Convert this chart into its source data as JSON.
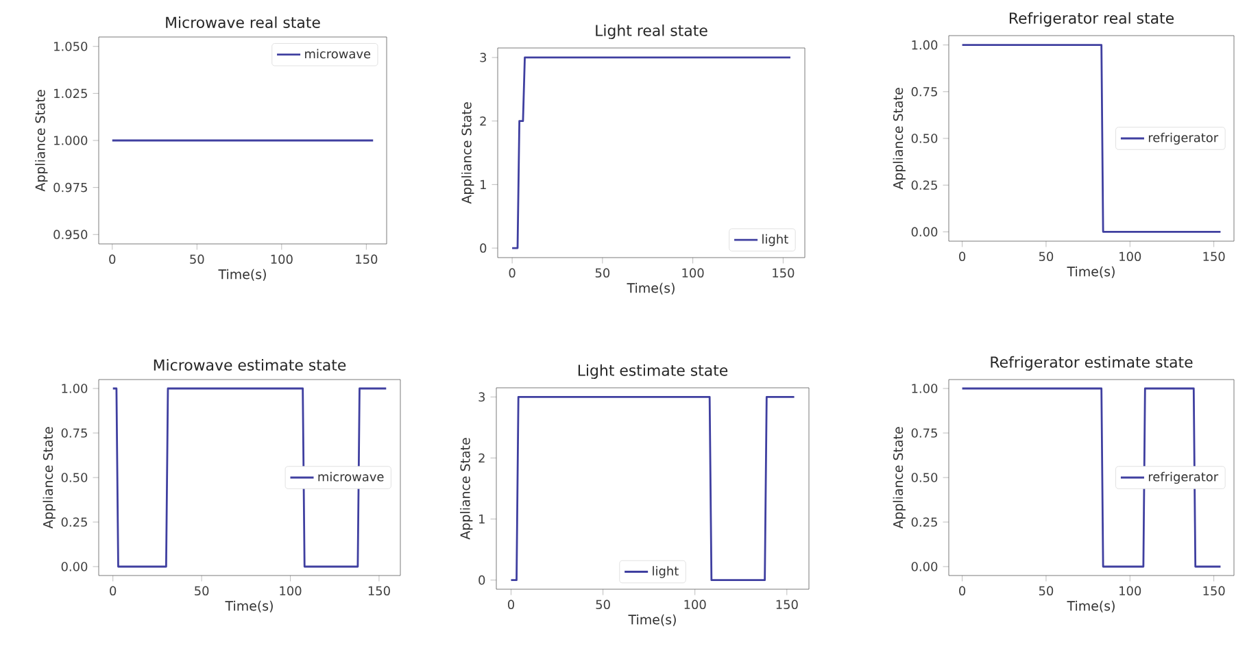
{
  "chart_data": [
    {
      "type": "line",
      "title": "Microwave real state",
      "xlabel": "Time(s)",
      "ylabel": "Appliance State",
      "x": [
        0,
        154
      ],
      "series": [
        {
          "name": "microwave",
          "color": "#3f3fa0",
          "values": [
            1,
            1
          ]
        }
      ],
      "xlim": [
        -8,
        162
      ],
      "ylim": [
        0.945,
        1.055
      ],
      "xticks": [
        0,
        50,
        100,
        150
      ],
      "yticks": [
        {
          "value": 0.95,
          "label": "0.950"
        },
        {
          "value": 0.975,
          "label": "0.975"
        },
        {
          "value": 1.0,
          "label": "1.000"
        },
        {
          "value": 1.025,
          "label": "1.025"
        },
        {
          "value": 1.05,
          "label": "1.050"
        }
      ],
      "legend": "top right"
    },
    {
      "type": "line",
      "title": "Light real state",
      "xlabel": "Time(s)",
      "ylabel": "Appliance State",
      "x": [
        0,
        3,
        4,
        6,
        7,
        154
      ],
      "series": [
        {
          "name": "light",
          "color": "#3f3fa0",
          "values": [
            0,
            0,
            2,
            2,
            3,
            3
          ]
        }
      ],
      "xlim": [
        -8,
        162
      ],
      "ylim": [
        -0.15,
        3.15
      ],
      "xticks": [
        0,
        50,
        100,
        150
      ],
      "yticks": [
        0,
        1,
        2,
        3
      ],
      "legend": "bottom right"
    },
    {
      "type": "line",
      "title": "Refrigerator real state",
      "xlabel": "Time(s)",
      "ylabel": "Appliance State",
      "x": [
        0,
        83,
        84,
        154
      ],
      "series": [
        {
          "name": "refrigerator",
          "color": "#3f3fa0",
          "values": [
            1,
            1,
            0,
            0
          ]
        }
      ],
      "xlim": [
        -8,
        162
      ],
      "ylim": [
        -0.05,
        1.05
      ],
      "xticks": [
        0,
        50,
        100,
        150
      ],
      "yticks": [
        {
          "value": 0,
          "label": "0.00"
        },
        {
          "value": 0.25,
          "label": "0.25"
        },
        {
          "value": 0.5,
          "label": "0.50"
        },
        {
          "value": 0.75,
          "label": "0.75"
        },
        {
          "value": 1,
          "label": "1.00"
        }
      ],
      "legend": "right"
    },
    {
      "type": "line",
      "title": "Microwave estimate state",
      "xlabel": "Time(s)",
      "ylabel": "Appliance State",
      "x": [
        0,
        2,
        3,
        30,
        31,
        107,
        108,
        138,
        139,
        154
      ],
      "series": [
        {
          "name": "microwave",
          "color": "#3f3fa0",
          "values": [
            1,
            1,
            0,
            0,
            1,
            1,
            0,
            0,
            1,
            1
          ]
        }
      ],
      "xlim": [
        -8,
        162
      ],
      "ylim": [
        -0.05,
        1.05
      ],
      "xticks": [
        0,
        50,
        100,
        150
      ],
      "yticks": [
        {
          "value": 0,
          "label": "0.00"
        },
        {
          "value": 0.25,
          "label": "0.25"
        },
        {
          "value": 0.5,
          "label": "0.50"
        },
        {
          "value": 0.75,
          "label": "0.75"
        },
        {
          "value": 1,
          "label": "1.00"
        }
      ],
      "legend": "right"
    },
    {
      "type": "line",
      "title": "Light estimate state",
      "xlabel": "Time(s)",
      "ylabel": "Appliance State",
      "x": [
        0,
        3,
        4,
        108,
        109,
        138,
        139,
        154
      ],
      "series": [
        {
          "name": "light",
          "color": "#3f3fa0",
          "values": [
            0,
            0,
            3,
            3,
            0,
            0,
            3,
            3
          ]
        }
      ],
      "xlim": [
        -8,
        162
      ],
      "ylim": [
        -0.15,
        3.15
      ],
      "xticks": [
        0,
        50,
        100,
        150
      ],
      "yticks": [
        0,
        1,
        2,
        3
      ],
      "legend": "bottom"
    },
    {
      "type": "line",
      "title": "Refrigerator estimate state",
      "xlabel": "Time(s)",
      "ylabel": "Appliance State",
      "x": [
        0,
        83,
        84,
        108,
        109,
        138,
        139,
        154
      ],
      "series": [
        {
          "name": "refrigerator",
          "color": "#3f3fa0",
          "values": [
            1,
            1,
            0,
            0,
            1,
            1,
            0,
            0
          ]
        }
      ],
      "xlim": [
        -8,
        162
      ],
      "ylim": [
        -0.05,
        1.05
      ],
      "xticks": [
        0,
        50,
        100,
        150
      ],
      "yticks": [
        {
          "value": 0,
          "label": "0.00"
        },
        {
          "value": 0.25,
          "label": "0.25"
        },
        {
          "value": 0.5,
          "label": "0.50"
        },
        {
          "value": 0.75,
          "label": "0.75"
        },
        {
          "value": 1,
          "label": "1.00"
        }
      ],
      "legend": "right"
    }
  ]
}
